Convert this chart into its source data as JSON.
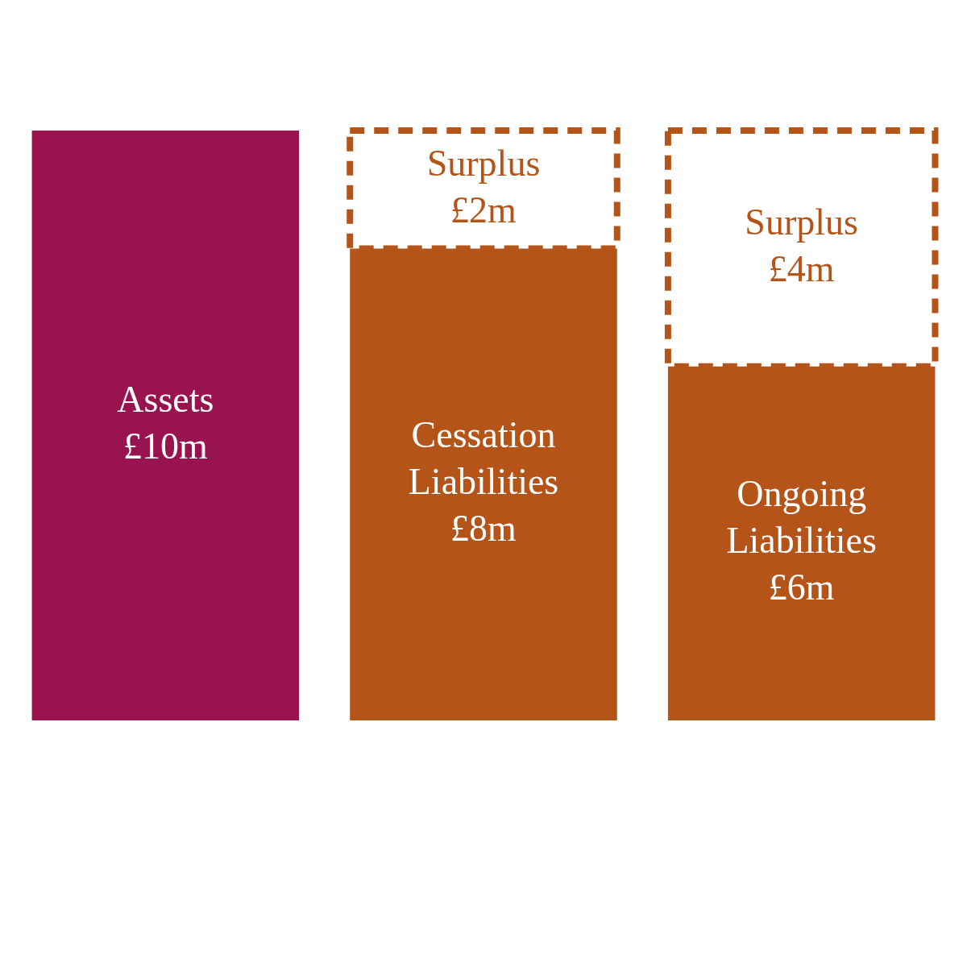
{
  "chart_data": {
    "type": "bar",
    "stacked": true,
    "categories": [
      null,
      null,
      null
    ],
    "series": [
      {
        "name": "Assets",
        "color": "#98134f",
        "values": [
          10,
          null,
          null
        ],
        "value_labels": [
          "£10m",
          null,
          null
        ]
      },
      {
        "name": "Cessation Liabilities",
        "color": "#b45418",
        "values": [
          null,
          8,
          null
        ],
        "value_labels": [
          null,
          "£8m",
          null
        ]
      },
      {
        "name": "Ongoing Liabilities",
        "color": "#b45418",
        "values": [
          null,
          null,
          6
        ],
        "value_labels": [
          null,
          null,
          "£6m"
        ]
      },
      {
        "name": "Surplus",
        "color": "#b45418",
        "line_style": "dashed",
        "values": [
          null,
          2,
          4
        ],
        "value_labels": [
          null,
          "£2m",
          "£4m"
        ]
      }
    ]
  }
}
